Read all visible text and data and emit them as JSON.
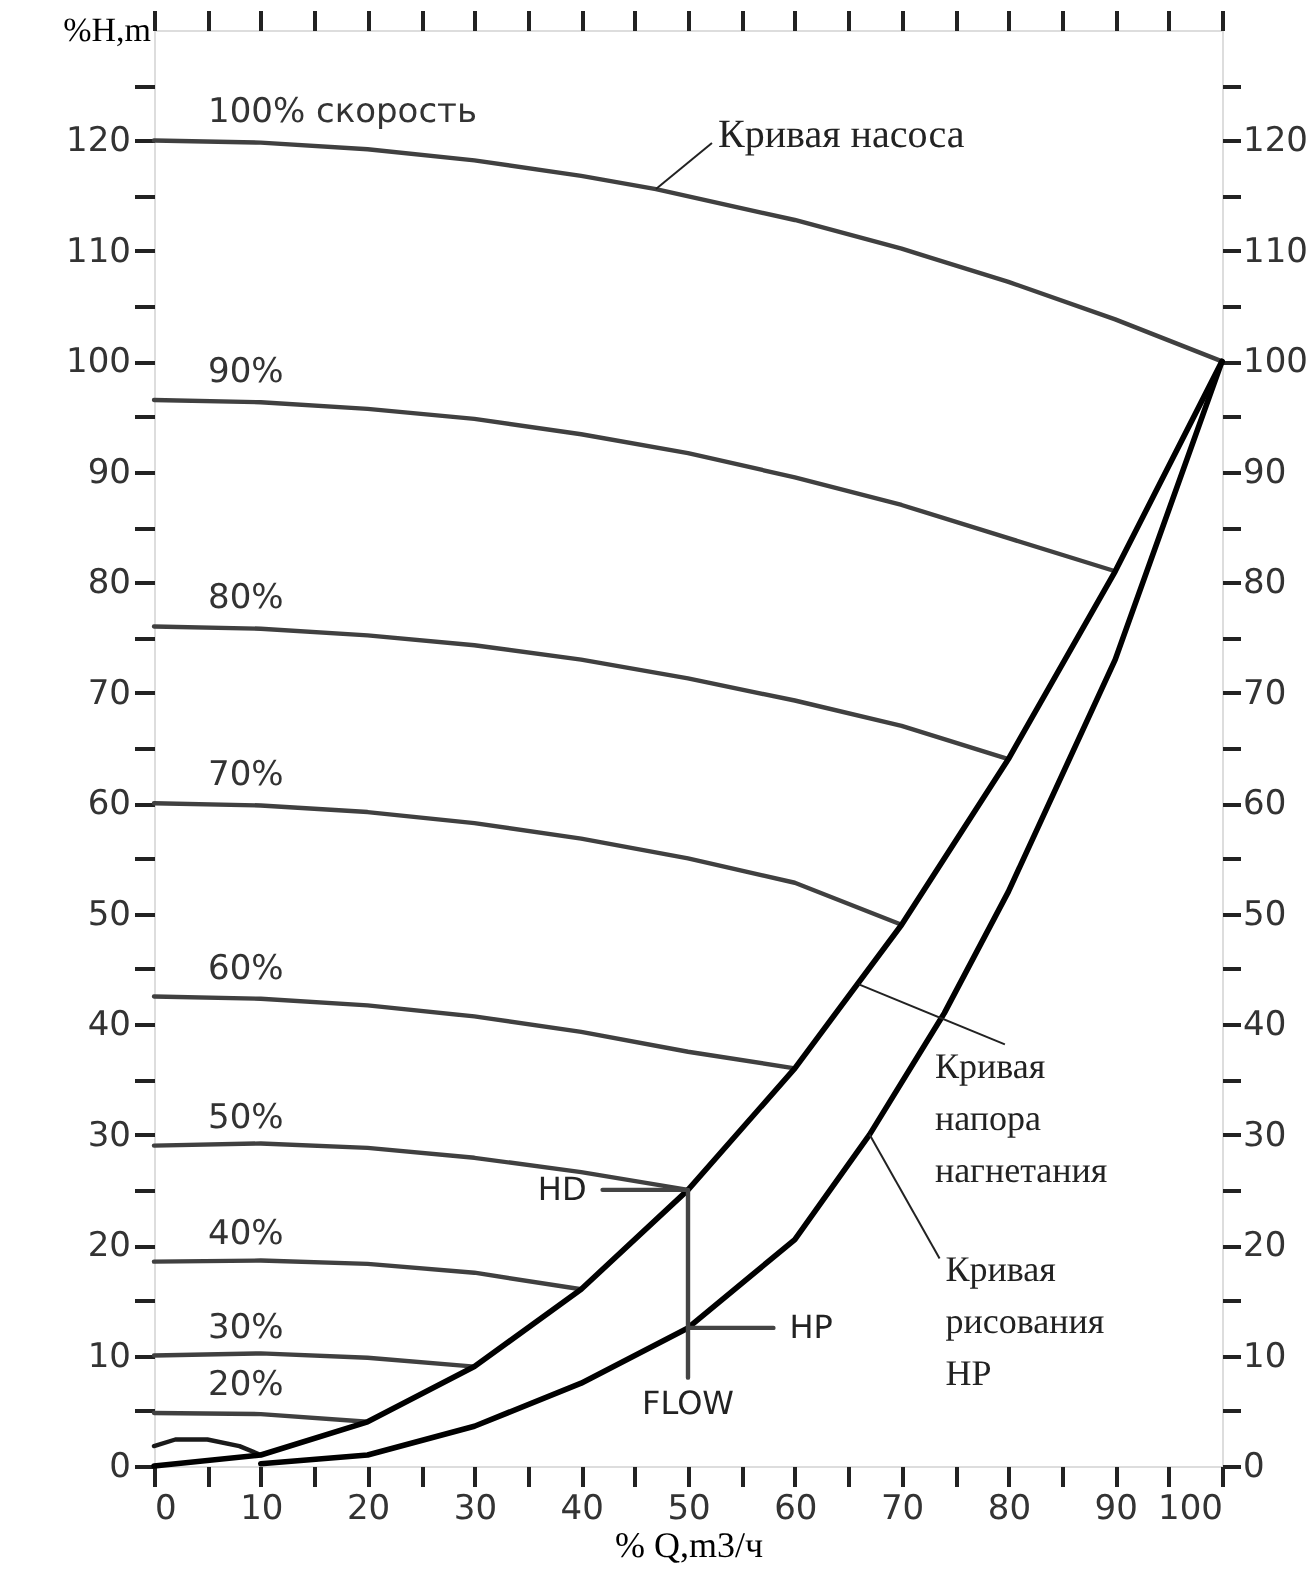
{
  "chart_data": {
    "type": "line",
    "xlabel": "% Q,m3/ч",
    "ylabel": "%H,m",
    "xlim": [
      0,
      100
    ],
    "ylim": [
      0,
      130
    ],
    "y2lim": [
      0,
      130
    ],
    "xticks": [
      0,
      {
        "value": 5,
        "label": null
      },
      10,
      {
        "value": 15,
        "label": null
      },
      20,
      {
        "value": 25,
        "label": null
      },
      30,
      {
        "value": 35,
        "label": null
      },
      40,
      {
        "value": 45,
        "label": null
      },
      50,
      {
        "value": 55,
        "label": null
      },
      60,
      {
        "value": 65,
        "label": null
      },
      70,
      {
        "value": 75,
        "label": null
      },
      80,
      {
        "value": 85,
        "label": null
      },
      90,
      {
        "value": 95,
        "label": null
      },
      100
    ],
    "yticks": [
      0,
      {
        "value": 5,
        "label": null
      },
      10,
      {
        "value": 15,
        "label": null
      },
      20,
      {
        "value": 25,
        "label": null
      },
      30,
      {
        "value": 35,
        "label": null
      },
      40,
      {
        "value": 45,
        "label": null
      },
      50,
      {
        "value": 55,
        "label": null
      },
      60,
      {
        "value": 65,
        "label": null
      },
      70,
      {
        "value": 75,
        "label": null
      },
      80,
      {
        "value": 85,
        "label": null
      },
      90,
      {
        "value": 95,
        "label": null
      },
      100,
      {
        "value": 105,
        "label": null
      },
      110,
      {
        "value": 115,
        "label": null
      },
      120,
      {
        "value": 125,
        "label": null
      }
    ],
    "y2ticks": [
      0,
      {
        "value": 5,
        "label": null
      },
      10,
      {
        "value": 15,
        "label": null
      },
      20,
      {
        "value": 25,
        "label": null
      },
      30,
      {
        "value": 35,
        "label": null
      },
      40,
      {
        "value": 45,
        "label": null
      },
      50,
      {
        "value": 55,
        "label": null
      },
      60,
      {
        "value": 65,
        "label": null
      },
      70,
      {
        "value": 75,
        "label": null
      },
      80,
      {
        "value": 85,
        "label": null
      },
      90,
      {
        "value": 95,
        "label": null
      },
      100,
      {
        "value": 105,
        "label": null
      },
      110,
      {
        "value": 115,
        "label": null
      },
      120,
      {
        "value": 125,
        "label": null
      }
    ],
    "grid": false,
    "legend": "left",
    "series": [
      {
        "name": "100% скорость",
        "color": "#404040",
        "x": [
          0,
          10,
          20,
          30,
          40,
          47,
          60,
          70,
          80,
          90,
          100
        ],
        "values": [
          120,
          119.8,
          119.2,
          118.2,
          116.8,
          115.6,
          112.8,
          110.2,
          107.2,
          103.8,
          100
        ]
      },
      {
        "name": "90%",
        "color": "#404040",
        "x": [
          0,
          10,
          20,
          30,
          40,
          50,
          60,
          70,
          80,
          90
        ],
        "values": [
          96.5,
          96.3,
          95.7,
          94.8,
          93.4,
          91.7,
          89.5,
          87,
          84,
          81
        ]
      },
      {
        "name": "80%",
        "color": "#404040",
        "x": [
          0,
          10,
          20,
          30,
          40,
          50,
          60,
          70,
          80
        ],
        "values": [
          76,
          75.8,
          75.2,
          74.3,
          73,
          71.3,
          69.3,
          67,
          64
        ]
      },
      {
        "name": "70%",
        "color": "#404040",
        "x": [
          0,
          10,
          20,
          30,
          40,
          50,
          60,
          70
        ],
        "values": [
          60,
          59.8,
          59.2,
          58.2,
          56.8,
          55,
          52.8,
          49
        ]
      },
      {
        "name": "60%",
        "color": "#404040",
        "x": [
          0,
          10,
          20,
          30,
          40,
          50,
          60
        ],
        "values": [
          42.5,
          42.3,
          41.7,
          40.7,
          39.3,
          37.5,
          36
        ]
      },
      {
        "name": "50%",
        "color": "#404040",
        "x": [
          0,
          10,
          20,
          30,
          40,
          50
        ],
        "values": [
          29,
          29.2,
          28.8,
          27.9,
          26.6,
          25
        ]
      },
      {
        "name": "40%",
        "color": "#404040",
        "x": [
          0,
          10,
          20,
          30,
          40
        ],
        "values": [
          18.5,
          18.6,
          18.3,
          17.5,
          16
        ]
      },
      {
        "name": "30%",
        "color": "#404040",
        "x": [
          0,
          10,
          20,
          30
        ],
        "values": [
          10,
          10.2,
          9.8,
          9
        ]
      },
      {
        "name": "20%",
        "color": "#404040",
        "x": [
          0,
          10,
          20
        ],
        "values": [
          4.8,
          4.7,
          4
        ]
      },
      {
        "color": "#1a1a1a",
        "x": [
          0,
          2,
          5,
          8,
          10
        ],
        "values": [
          1.8,
          2.4,
          2.4,
          1.8,
          1
        ]
      },
      {
        "color": "#000000",
        "x": [
          0,
          10,
          20,
          30,
          40,
          50,
          60,
          70,
          80,
          90,
          100
        ],
        "values": [
          0,
          1,
          4,
          9,
          16,
          25,
          36,
          49,
          64,
          81,
          100
        ]
      },
      {
        "color": "#000000",
        "x": [
          10,
          20,
          30,
          40,
          50,
          60,
          67,
          74,
          80,
          90,
          100
        ],
        "values": [
          0.2,
          1,
          3.6,
          7.5,
          12.5,
          20.5,
          30,
          41,
          52,
          73,
          100
        ]
      },
      {
        "color": "#444444",
        "x": [
          42,
          50,
          50
        ],
        "values": [
          25,
          25,
          8
        ]
      },
      {
        "color": "#444444",
        "x": [
          50,
          58
        ],
        "values": [
          12.5,
          12.5
        ]
      }
    ],
    "annotations": [
      {
        "text": "Кривая насоса",
        "x": 47,
        "y": 115.6
      },
      {
        "text": "Кривая напора нагнетания",
        "x": 66,
        "y": 43.6
      },
      {
        "text": "Кривая рисования HP",
        "x": 67,
        "y": 30
      },
      "HD",
      "HP",
      "FLOW"
    ]
  }
}
